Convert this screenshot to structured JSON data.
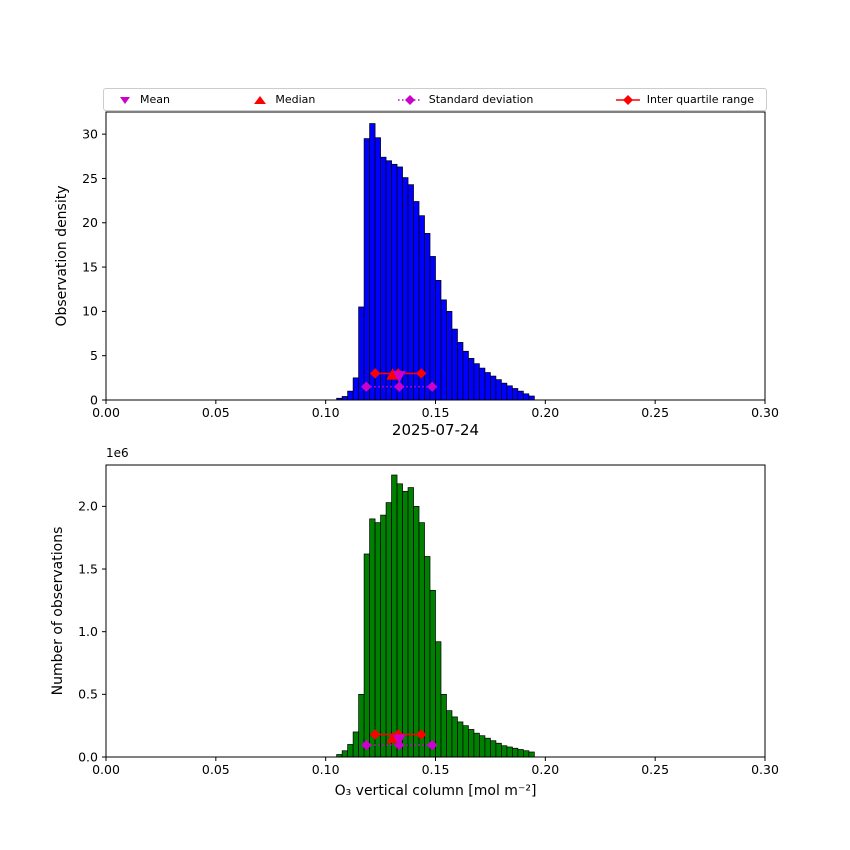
{
  "legend": {
    "items": [
      {
        "label": "Mean",
        "color": "#cc00cc",
        "shape": "triangle-down"
      },
      {
        "label": "Median",
        "color": "#ff0000",
        "shape": "triangle-up"
      },
      {
        "label": "Standard deviation",
        "color": "#cc00cc",
        "shape": "diamond-dotted-line"
      },
      {
        "label": "Inter quartile range",
        "color": "#ff0000",
        "shape": "diamond-solid-line"
      }
    ]
  },
  "chart_data": [
    {
      "type": "bar",
      "title": "",
      "ylabel": "Observation density",
      "xlabel": "",
      "xlim": [
        0.0,
        0.3
      ],
      "ylim": [
        0,
        32.5
      ],
      "xticks": [
        0.0,
        0.05,
        0.1,
        0.15,
        0.2,
        0.25,
        0.3
      ],
      "xtick_labels": [
        "0.00",
        "0.05",
        "0.10",
        "0.15",
        "0.20",
        "0.25",
        "0.30"
      ],
      "yticks": [
        0,
        5,
        10,
        15,
        20,
        25,
        30
      ],
      "ytick_labels": [
        "0",
        "5",
        "10",
        "15",
        "20",
        "25",
        "30"
      ],
      "bar_color": "#0000ff",
      "edge_color": "#000000",
      "bin_start": 0.105,
      "bin_width": 0.0025,
      "values": [
        0.2,
        0.4,
        1.0,
        2.5,
        10.5,
        29.5,
        31.2,
        29.6,
        27.4,
        27.0,
        26.6,
        26.3,
        25.1,
        24.3,
        22.4,
        20.8,
        18.8,
        16.2,
        13.5,
        11.3,
        10.0,
        8.0,
        6.5,
        5.5,
        4.7,
        4.1,
        3.6,
        3.1,
        2.7,
        2.3,
        1.9,
        1.6,
        1.3,
        1.0,
        0.7,
        0.45
      ],
      "markers": {
        "mean": {
          "x": 0.1335,
          "y": 2.7,
          "color": "#cc00cc"
        },
        "median": {
          "x": 0.1305,
          "y": 2.85,
          "color": "#ff0000"
        },
        "std": {
          "x0": 0.1185,
          "x1": 0.1485,
          "y": 1.5,
          "color": "#cc00cc",
          "style": "dotted"
        },
        "iqr": {
          "x0": 0.1225,
          "x1": 0.1435,
          "y": 3.0,
          "color": "#ff0000",
          "style": "solid"
        }
      }
    },
    {
      "type": "bar",
      "title": "2025-07-24",
      "ylabel": "Number of observations",
      "xlabel": "O₃ vertical column [mol m⁻²]",
      "offset_text": "1e6",
      "xlim": [
        0.0,
        0.3
      ],
      "ylim": [
        0,
        2.33
      ],
      "xticks": [
        0.0,
        0.05,
        0.1,
        0.15,
        0.2,
        0.25,
        0.3
      ],
      "xtick_labels": [
        "0.00",
        "0.05",
        "0.10",
        "0.15",
        "0.20",
        "0.25",
        "0.30"
      ],
      "yticks": [
        0.0,
        0.5,
        1.0,
        1.5,
        2.0
      ],
      "ytick_labels": [
        "0.0",
        "0.5",
        "1.0",
        "1.5",
        "2.0"
      ],
      "unit_multiplier": 1000000,
      "bar_color": "#008000",
      "edge_color": "#000000",
      "bin_start": 0.105,
      "bin_width": 0.0025,
      "values": [
        0.02,
        0.05,
        0.1,
        0.2,
        0.5,
        1.62,
        1.9,
        1.87,
        1.93,
        2.03,
        2.25,
        2.18,
        2.12,
        2.15,
        2.0,
        1.87,
        1.6,
        1.33,
        0.92,
        0.5,
        0.37,
        0.32,
        0.28,
        0.25,
        0.22,
        0.19,
        0.17,
        0.15,
        0.13,
        0.11,
        0.09,
        0.08,
        0.07,
        0.06,
        0.05,
        0.04
      ],
      "markers": {
        "mean": {
          "x": 0.1335,
          "y": 0.14,
          "color": "#cc00cc"
        },
        "median": {
          "x": 0.1305,
          "y": 0.15,
          "color": "#ff0000"
        },
        "std": {
          "x0": 0.1185,
          "x1": 0.1485,
          "y": 0.095,
          "color": "#cc00cc",
          "style": "dotted"
        },
        "iqr": {
          "x0": 0.1225,
          "x1": 0.1435,
          "y": 0.18,
          "color": "#ff0000",
          "style": "solid"
        }
      }
    }
  ]
}
